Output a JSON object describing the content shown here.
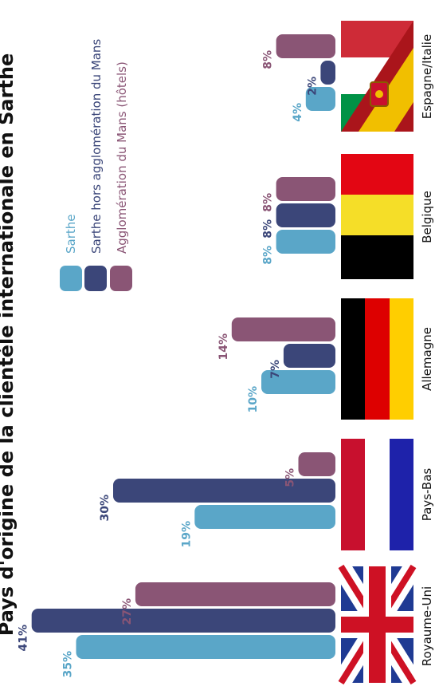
{
  "title": "Pays d'origine de la clientèle internationale en Sarthe",
  "legend": [
    {
      "label": "Sarthe",
      "color": "#5AA6C8"
    },
    {
      "label": "Sarthe hors agglomération du Mans",
      "color": "#3B4679"
    },
    {
      "label": "Agglomération du Mans (hôtels)",
      "color": "#8A5575"
    }
  ],
  "chart_data": {
    "type": "bar",
    "orientation": "horizontal-rotated",
    "categories": [
      "Royaume-Uni",
      "Pays-Bas",
      "Allemagne",
      "Belgique",
      "Espagne/Italie"
    ],
    "series": [
      {
        "name": "Sarthe",
        "color": "#5AA6C8",
        "values": [
          35,
          19,
          10,
          8,
          4
        ],
        "labels": [
          "35%",
          "19%",
          "10%",
          "8%",
          "4%"
        ]
      },
      {
        "name": "Sarthe hors agglomération du Mans",
        "color": "#3B4679",
        "values": [
          41,
          30,
          7,
          8,
          2
        ],
        "labels": [
          "41%",
          "30%",
          "7%",
          "8%",
          "2%"
        ]
      },
      {
        "name": "Agglomération du Mans (hôtels)",
        "color": "#8A5575",
        "values": [
          27,
          5,
          14,
          8,
          8
        ],
        "labels": [
          "27%",
          "5%",
          "14%",
          "8%",
          "8%"
        ]
      }
    ],
    "unit": "%"
  },
  "flags": [
    {
      "country": "Royaume-Uni",
      "icon": "uk-flag-icon"
    },
    {
      "country": "Pays-Bas",
      "icon": "netherlands-flag-icon"
    },
    {
      "country": "Allemagne",
      "icon": "germany-flag-icon"
    },
    {
      "country": "Belgique",
      "icon": "belgium-flag-icon"
    },
    {
      "country": "Espagne/Italie",
      "icon": "spain-italy-flag-icon"
    }
  ]
}
